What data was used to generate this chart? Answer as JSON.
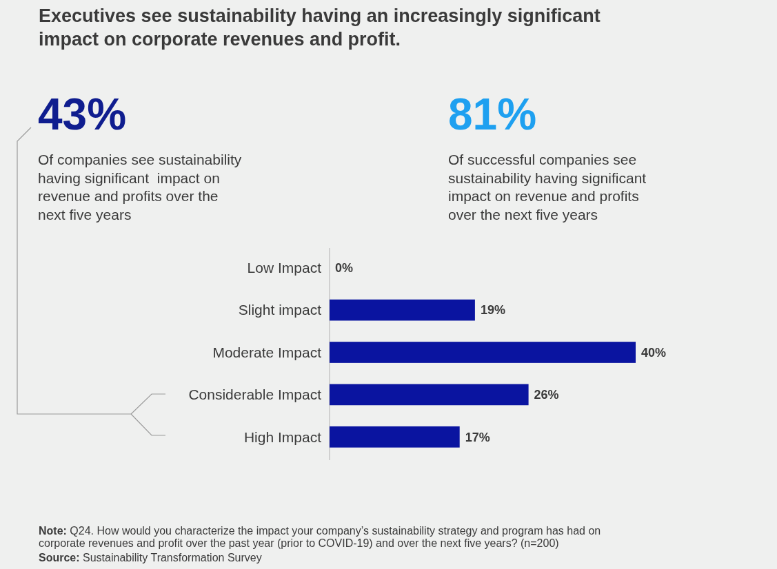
{
  "chart_data": {
    "type": "bar",
    "orientation": "horizontal",
    "title": "Executives see sustainability having an increasingly significant\nimpact on corporate revenues and profit.",
    "categories": [
      "Low Impact",
      "Slight impact",
      "Moderate Impact",
      "Considerable Impact",
      "High Impact"
    ],
    "values": [
      0,
      19,
      40,
      26,
      17
    ],
    "color": "#0a14a0",
    "data_labels": true,
    "value_labels": [
      "0%",
      "19%",
      "40%",
      "26%",
      "17%"
    ],
    "annotations": [
      "43%",
      "Of companies see sustainability\nhaving significant  impact on\nrevenue and profits over the\nnext five years",
      "81%",
      "Of successful companies see\nsustainability having significant\nimpact on revenue and profits\nover the next five years",
      "Note: Q24. How would you characterize the impact your company’s sustainability strategy and program has had on\ncorporate revenues and profit over the past year (prior to COVID-19) and over the next five years? (n=200)",
      "Source: Sustainability Transformation Survey"
    ]
  }
}
